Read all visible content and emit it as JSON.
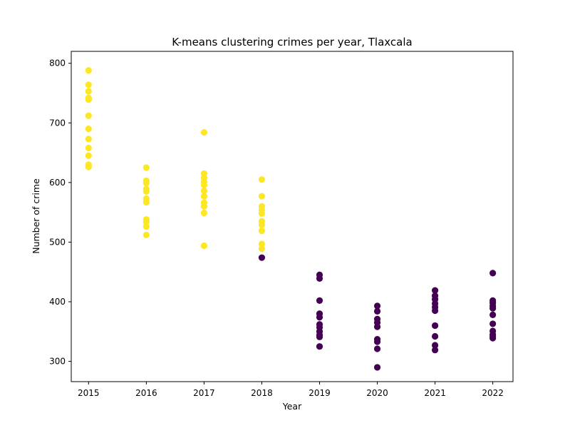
{
  "chart_data": {
    "type": "scatter",
    "title": "K-means clustering crimes per year, Tlaxcala",
    "xlabel": "Year",
    "ylabel": "Number of crime",
    "xlim": [
      2014.7,
      2022.35
    ],
    "ylim": [
      266,
      820
    ],
    "x_ticks": [
      2015,
      2016,
      2017,
      2018,
      2019,
      2020,
      2021,
      2022
    ],
    "y_ticks": [
      300,
      400,
      500,
      600,
      700,
      800
    ],
    "grid": false,
    "legend": "none",
    "cluster_colors": {
      "0": "#440154",
      "1": "#fde725"
    },
    "points": [
      {
        "x": 2015,
        "y": 788,
        "cluster": 1
      },
      {
        "x": 2015,
        "y": 764,
        "cluster": 1
      },
      {
        "x": 2015,
        "y": 753,
        "cluster": 1
      },
      {
        "x": 2015,
        "y": 742,
        "cluster": 1
      },
      {
        "x": 2015,
        "y": 739,
        "cluster": 1
      },
      {
        "x": 2015,
        "y": 712,
        "cluster": 1
      },
      {
        "x": 2015,
        "y": 690,
        "cluster": 1
      },
      {
        "x": 2015,
        "y": 673,
        "cluster": 1
      },
      {
        "x": 2015,
        "y": 658,
        "cluster": 1
      },
      {
        "x": 2015,
        "y": 645,
        "cluster": 1
      },
      {
        "x": 2015,
        "y": 630,
        "cluster": 1
      },
      {
        "x": 2015,
        "y": 626,
        "cluster": 1
      },
      {
        "x": 2016,
        "y": 625,
        "cluster": 1
      },
      {
        "x": 2016,
        "y": 603,
        "cluster": 1
      },
      {
        "x": 2016,
        "y": 599,
        "cluster": 1
      },
      {
        "x": 2016,
        "y": 589,
        "cluster": 1
      },
      {
        "x": 2016,
        "y": 585,
        "cluster": 1
      },
      {
        "x": 2016,
        "y": 573,
        "cluster": 1
      },
      {
        "x": 2016,
        "y": 567,
        "cluster": 1
      },
      {
        "x": 2016,
        "y": 538,
        "cluster": 1
      },
      {
        "x": 2016,
        "y": 534,
        "cluster": 1
      },
      {
        "x": 2016,
        "y": 526,
        "cluster": 1
      },
      {
        "x": 2016,
        "y": 512,
        "cluster": 1
      },
      {
        "x": 2017,
        "y": 684,
        "cluster": 1
      },
      {
        "x": 2017,
        "y": 615,
        "cluster": 1
      },
      {
        "x": 2017,
        "y": 608,
        "cluster": 1
      },
      {
        "x": 2017,
        "y": 601,
        "cluster": 1
      },
      {
        "x": 2017,
        "y": 596,
        "cluster": 1
      },
      {
        "x": 2017,
        "y": 586,
        "cluster": 1
      },
      {
        "x": 2017,
        "y": 577,
        "cluster": 1
      },
      {
        "x": 2017,
        "y": 566,
        "cluster": 1
      },
      {
        "x": 2017,
        "y": 560,
        "cluster": 1
      },
      {
        "x": 2017,
        "y": 549,
        "cluster": 1
      },
      {
        "x": 2017,
        "y": 494,
        "cluster": 1
      },
      {
        "x": 2018,
        "y": 605,
        "cluster": 1
      },
      {
        "x": 2018,
        "y": 577,
        "cluster": 1
      },
      {
        "x": 2018,
        "y": 560,
        "cluster": 1
      },
      {
        "x": 2018,
        "y": 554,
        "cluster": 1
      },
      {
        "x": 2018,
        "y": 548,
        "cluster": 1
      },
      {
        "x": 2018,
        "y": 535,
        "cluster": 1
      },
      {
        "x": 2018,
        "y": 529,
        "cluster": 1
      },
      {
        "x": 2018,
        "y": 519,
        "cluster": 1
      },
      {
        "x": 2018,
        "y": 497,
        "cluster": 1
      },
      {
        "x": 2018,
        "y": 489,
        "cluster": 1
      },
      {
        "x": 2018,
        "y": 474,
        "cluster": 0
      },
      {
        "x": 2019,
        "y": 445,
        "cluster": 0
      },
      {
        "x": 2019,
        "y": 439,
        "cluster": 0
      },
      {
        "x": 2019,
        "y": 402,
        "cluster": 0
      },
      {
        "x": 2019,
        "y": 380,
        "cluster": 0
      },
      {
        "x": 2019,
        "y": 374,
        "cluster": 0
      },
      {
        "x": 2019,
        "y": 362,
        "cluster": 0
      },
      {
        "x": 2019,
        "y": 357,
        "cluster": 0
      },
      {
        "x": 2019,
        "y": 350,
        "cluster": 0
      },
      {
        "x": 2019,
        "y": 344,
        "cluster": 0
      },
      {
        "x": 2019,
        "y": 341,
        "cluster": 0
      },
      {
        "x": 2019,
        "y": 325,
        "cluster": 0
      },
      {
        "x": 2020,
        "y": 393,
        "cluster": 0
      },
      {
        "x": 2020,
        "y": 384,
        "cluster": 0
      },
      {
        "x": 2020,
        "y": 371,
        "cluster": 0
      },
      {
        "x": 2020,
        "y": 365,
        "cluster": 0
      },
      {
        "x": 2020,
        "y": 358,
        "cluster": 0
      },
      {
        "x": 2020,
        "y": 337,
        "cluster": 0
      },
      {
        "x": 2020,
        "y": 333,
        "cluster": 0
      },
      {
        "x": 2020,
        "y": 321,
        "cluster": 0
      },
      {
        "x": 2020,
        "y": 290,
        "cluster": 0
      },
      {
        "x": 2021,
        "y": 419,
        "cluster": 0
      },
      {
        "x": 2021,
        "y": 410,
        "cluster": 0
      },
      {
        "x": 2021,
        "y": 404,
        "cluster": 0
      },
      {
        "x": 2021,
        "y": 397,
        "cluster": 0
      },
      {
        "x": 2021,
        "y": 391,
        "cluster": 0
      },
      {
        "x": 2021,
        "y": 385,
        "cluster": 0
      },
      {
        "x": 2021,
        "y": 360,
        "cluster": 0
      },
      {
        "x": 2021,
        "y": 342,
        "cluster": 0
      },
      {
        "x": 2021,
        "y": 327,
        "cluster": 0
      },
      {
        "x": 2021,
        "y": 319,
        "cluster": 0
      },
      {
        "x": 2022,
        "y": 448,
        "cluster": 0
      },
      {
        "x": 2022,
        "y": 402,
        "cluster": 0
      },
      {
        "x": 2022,
        "y": 398,
        "cluster": 0
      },
      {
        "x": 2022,
        "y": 393,
        "cluster": 0
      },
      {
        "x": 2022,
        "y": 389,
        "cluster": 0
      },
      {
        "x": 2022,
        "y": 378,
        "cluster": 0
      },
      {
        "x": 2022,
        "y": 363,
        "cluster": 0
      },
      {
        "x": 2022,
        "y": 351,
        "cluster": 0
      },
      {
        "x": 2022,
        "y": 345,
        "cluster": 0
      },
      {
        "x": 2022,
        "y": 342,
        "cluster": 0
      },
      {
        "x": 2022,
        "y": 339,
        "cluster": 0
      }
    ]
  }
}
